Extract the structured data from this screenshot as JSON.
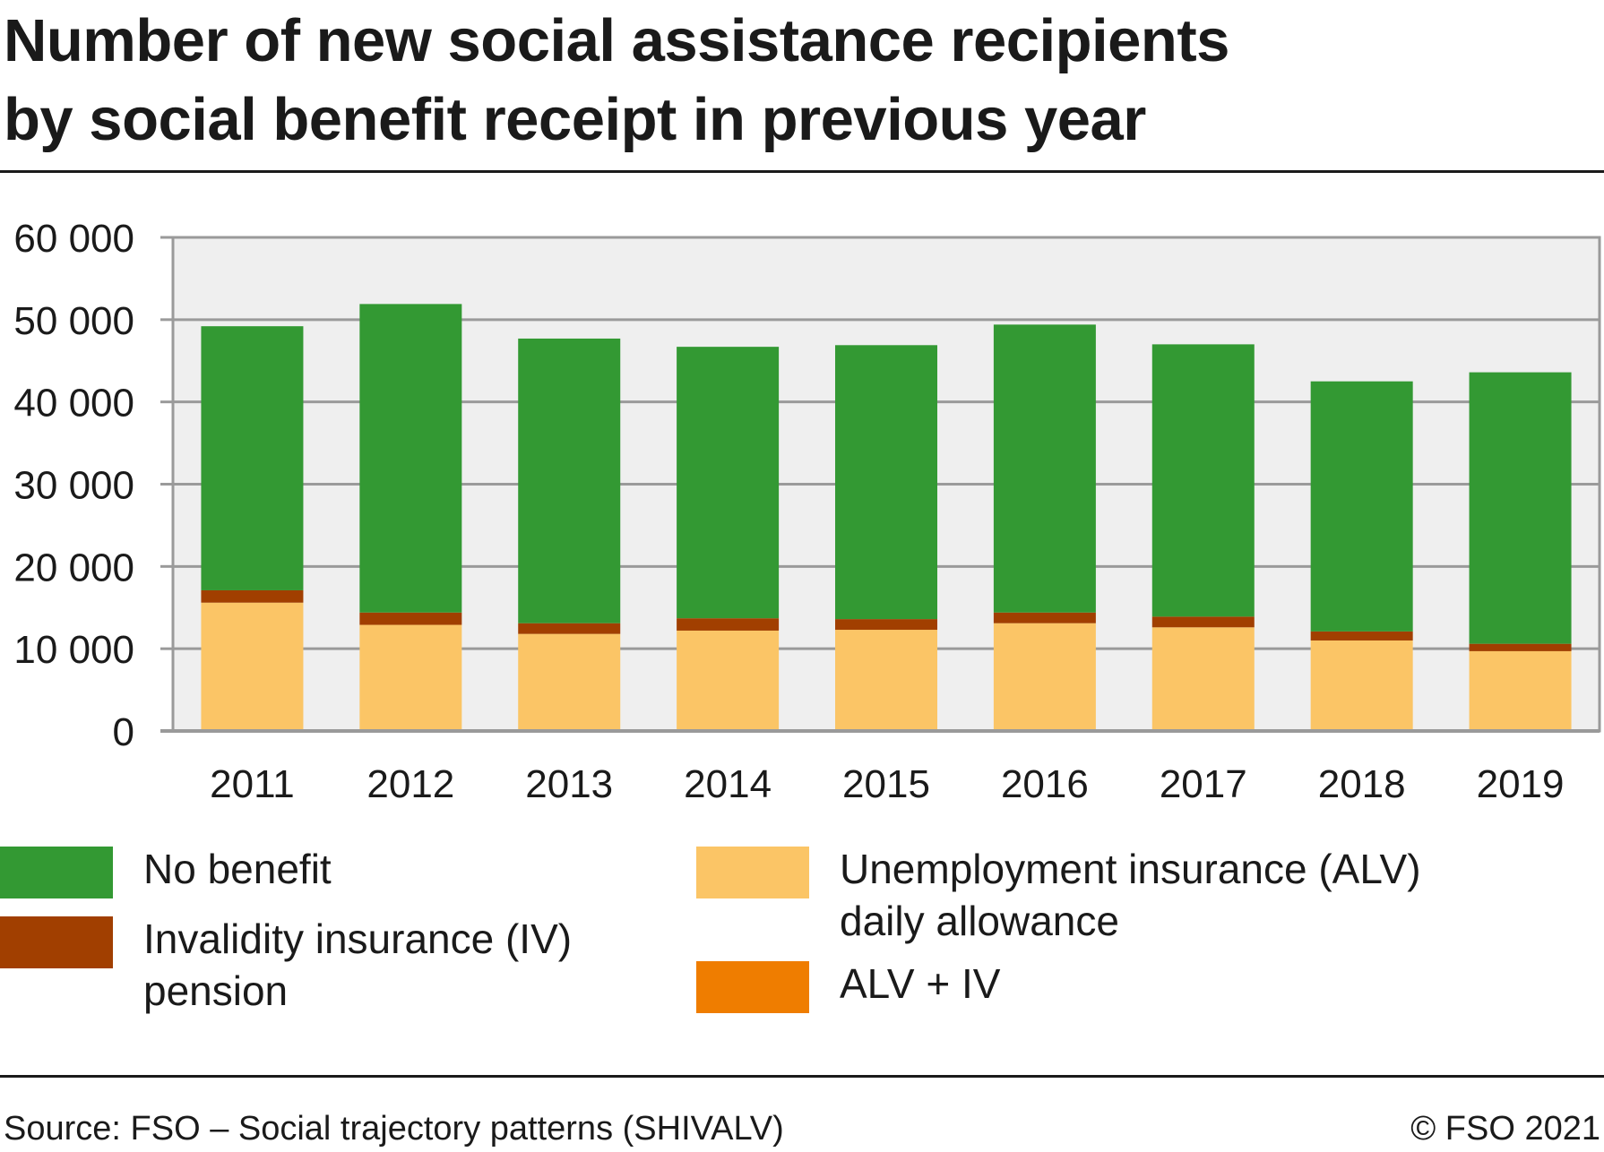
{
  "title_lines": [
    "Number of new social assistance recipients",
    "by social benefit receipt in previous year"
  ],
  "footer": {
    "source": "Source: FSO – Social trajectory patterns (SHIVALV)",
    "copyright": "© FSO 2021"
  },
  "legend": [
    {
      "label_lines": [
        "No benefit"
      ],
      "color": "#339933"
    },
    {
      "label_lines": [
        "Invalidity insurance (IV)",
        "pension"
      ],
      "color": "#a13f00"
    },
    {
      "label_lines": [
        "Unemployment insurance (ALV)",
        "daily allowance"
      ],
      "color": "#fbc566"
    },
    {
      "label_lines": [
        "ALV + IV"
      ],
      "color": "#ef7d00"
    }
  ],
  "chart_data": {
    "type": "bar",
    "stacked": true,
    "title": "Number of new social assistance recipients by social benefit receipt in previous year",
    "xlabel": "",
    "ylabel": "",
    "ylim": [
      0,
      60000
    ],
    "yticks": [
      0,
      10000,
      20000,
      30000,
      40000,
      50000,
      60000
    ],
    "ytick_labels": [
      "0",
      "10 000",
      "20 000",
      "30 000",
      "40 000",
      "50 000",
      "60 000"
    ],
    "grid": true,
    "plot_background": "#efefef",
    "categories": [
      "2011",
      "2012",
      "2013",
      "2014",
      "2015",
      "2016",
      "2017",
      "2018",
      "2019"
    ],
    "series": [
      {
        "name": "Unemployment insurance (ALV) daily allowance",
        "color": "#fbc566",
        "values": [
          15600,
          12900,
          11800,
          12200,
          12300,
          13100,
          12600,
          11000,
          9700
        ]
      },
      {
        "name": "ALV + IV",
        "color": "#ef7d00",
        "values": [
          0,
          0,
          0,
          0,
          0,
          0,
          0,
          0,
          0
        ]
      },
      {
        "name": "Invalidity insurance (IV) pension",
        "color": "#a13f00",
        "values": [
          1500,
          1500,
          1300,
          1500,
          1300,
          1300,
          1300,
          1100,
          900
        ]
      },
      {
        "name": "No benefit",
        "color": "#339933",
        "values": [
          32100,
          37500,
          34600,
          33000,
          33300,
          35000,
          33100,
          30400,
          33000
        ]
      }
    ]
  }
}
